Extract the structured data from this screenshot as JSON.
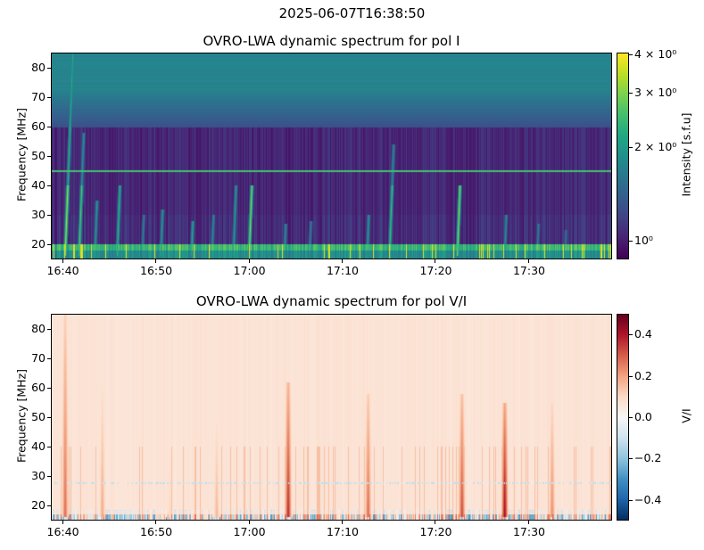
{
  "figure": {
    "suptitle": "2025-06-07T16:38:50"
  },
  "colors": {
    "viridis": [
      "#440154",
      "#482475",
      "#414487",
      "#355f8d",
      "#2a788e",
      "#21918c",
      "#22a884",
      "#44bf70",
      "#7ad151",
      "#bddf26",
      "#fde725"
    ],
    "rdbu_r": [
      "#053061",
      "#2166ac",
      "#4393c3",
      "#92c5de",
      "#d1e5f0",
      "#f7f7f7",
      "#fddbc7",
      "#f4a582",
      "#d6604d",
      "#b2182b",
      "#67001f"
    ],
    "hline": "#c8a050"
  },
  "chart_data": [
    {
      "type": "heatmap",
      "title": "OVRO-LWA dynamic spectrum for pol I",
      "xlabel": "",
      "ylabel": "Frequency [MHz]",
      "x_ticks": [
        "16:40",
        "16:50",
        "17:00",
        "17:10",
        "17:20",
        "17:30"
      ],
      "x_tick_values_min": [
        40,
        50,
        60,
        70,
        80,
        90
      ],
      "xlim_min": [
        38.8,
        99.0
      ],
      "y_ticks": [
        20,
        30,
        40,
        50,
        60,
        70,
        80
      ],
      "ylim": [
        15,
        85
      ],
      "colormap": "viridis",
      "colorbar": {
        "label": "Intensity [s.f.u]",
        "scale": "log",
        "range": [
          0.87,
          4.05
        ],
        "tick_labels": [
          "4 × 10⁰",
          "3 × 10⁰",
          "2 × 10⁰",
          "10⁰"
        ],
        "tick_values": [
          4,
          3,
          2,
          1
        ]
      },
      "horizontal_line_mhz": 45,
      "bursts": [
        {
          "time_min": 40.2,
          "f_low": 16,
          "f_high": 85,
          "strength": 0.9
        },
        {
          "time_min": 41.7,
          "f_low": 16,
          "f_high": 58,
          "strength": 0.75
        },
        {
          "time_min": 43.4,
          "f_low": 16,
          "f_high": 35,
          "strength": 0.55
        },
        {
          "time_min": 45.8,
          "f_low": 16,
          "f_high": 40,
          "strength": 0.65
        },
        {
          "time_min": 48.5,
          "f_low": 16,
          "f_high": 30,
          "strength": 0.45
        },
        {
          "time_min": 50.5,
          "f_low": 16,
          "f_high": 32,
          "strength": 0.55
        },
        {
          "time_min": 53.8,
          "f_low": 16,
          "f_high": 28,
          "strength": 0.6
        },
        {
          "time_min": 56.0,
          "f_low": 16,
          "f_high": 30,
          "strength": 0.5
        },
        {
          "time_min": 58.3,
          "f_low": 16,
          "f_high": 40,
          "strength": 0.55
        },
        {
          "time_min": 60.0,
          "f_low": 18,
          "f_high": 40,
          "strength": 0.85
        },
        {
          "time_min": 63.8,
          "f_low": 16,
          "f_high": 27,
          "strength": 0.5
        },
        {
          "time_min": 66.5,
          "f_low": 16,
          "f_high": 28,
          "strength": 0.45
        },
        {
          "time_min": 72.7,
          "f_low": 16,
          "f_high": 30,
          "strength": 0.55
        },
        {
          "time_min": 75.1,
          "f_low": 16,
          "f_high": 54,
          "strength": 0.7
        },
        {
          "time_min": 82.4,
          "f_low": 16,
          "f_high": 40,
          "strength": 0.85
        },
        {
          "time_min": 87.5,
          "f_low": 16,
          "f_high": 30,
          "strength": 0.5
        },
        {
          "time_min": 91.0,
          "f_low": 16,
          "f_high": 27,
          "strength": 0.45
        },
        {
          "time_min": 94.0,
          "f_low": 16,
          "f_high": 25,
          "strength": 0.4
        }
      ]
    },
    {
      "type": "heatmap",
      "title": "OVRO-LWA dynamic spectrum for pol V/I",
      "xlabel": "",
      "ylabel": "Frequency [MHz]",
      "x_ticks": [
        "16:40",
        "16:50",
        "17:00",
        "17:10",
        "17:20",
        "17:30"
      ],
      "x_tick_values_min": [
        40,
        50,
        60,
        70,
        80,
        90
      ],
      "xlim_min": [
        38.8,
        99.0
      ],
      "y_ticks": [
        20,
        30,
        40,
        50,
        60,
        70,
        80
      ],
      "ylim": [
        15,
        85
      ],
      "colormap": "RdBu_r",
      "colorbar": {
        "label": "V/I",
        "scale": "linear",
        "range": [
          -0.5,
          0.5
        ],
        "tick_labels": [
          "0.4",
          "0.2",
          "0.0",
          "−0.2",
          "−0.4"
        ],
        "tick_values": [
          0.4,
          0.2,
          0.0,
          -0.2,
          -0.4
        ]
      },
      "bursts": [
        {
          "time_min": 40.2,
          "f_low": 16,
          "f_high": 85,
          "value": 0.3
        },
        {
          "time_min": 44.2,
          "f_low": 16,
          "f_high": 60,
          "value": 0.2
        },
        {
          "time_min": 51.5,
          "f_low": 16,
          "f_high": 45,
          "value": 0.12
        },
        {
          "time_min": 56.5,
          "f_low": 16,
          "f_high": 48,
          "value": 0.18
        },
        {
          "time_min": 64.2,
          "f_low": 16,
          "f_high": 62,
          "value": 0.4
        },
        {
          "time_min": 72.8,
          "f_low": 16,
          "f_high": 58,
          "value": 0.3
        },
        {
          "time_min": 82.9,
          "f_low": 16,
          "f_high": 58,
          "value": 0.35
        },
        {
          "time_min": 87.5,
          "f_low": 16,
          "f_high": 55,
          "value": 0.45
        },
        {
          "time_min": 92.6,
          "f_low": 16,
          "f_high": 55,
          "value": 0.25
        }
      ]
    }
  ]
}
